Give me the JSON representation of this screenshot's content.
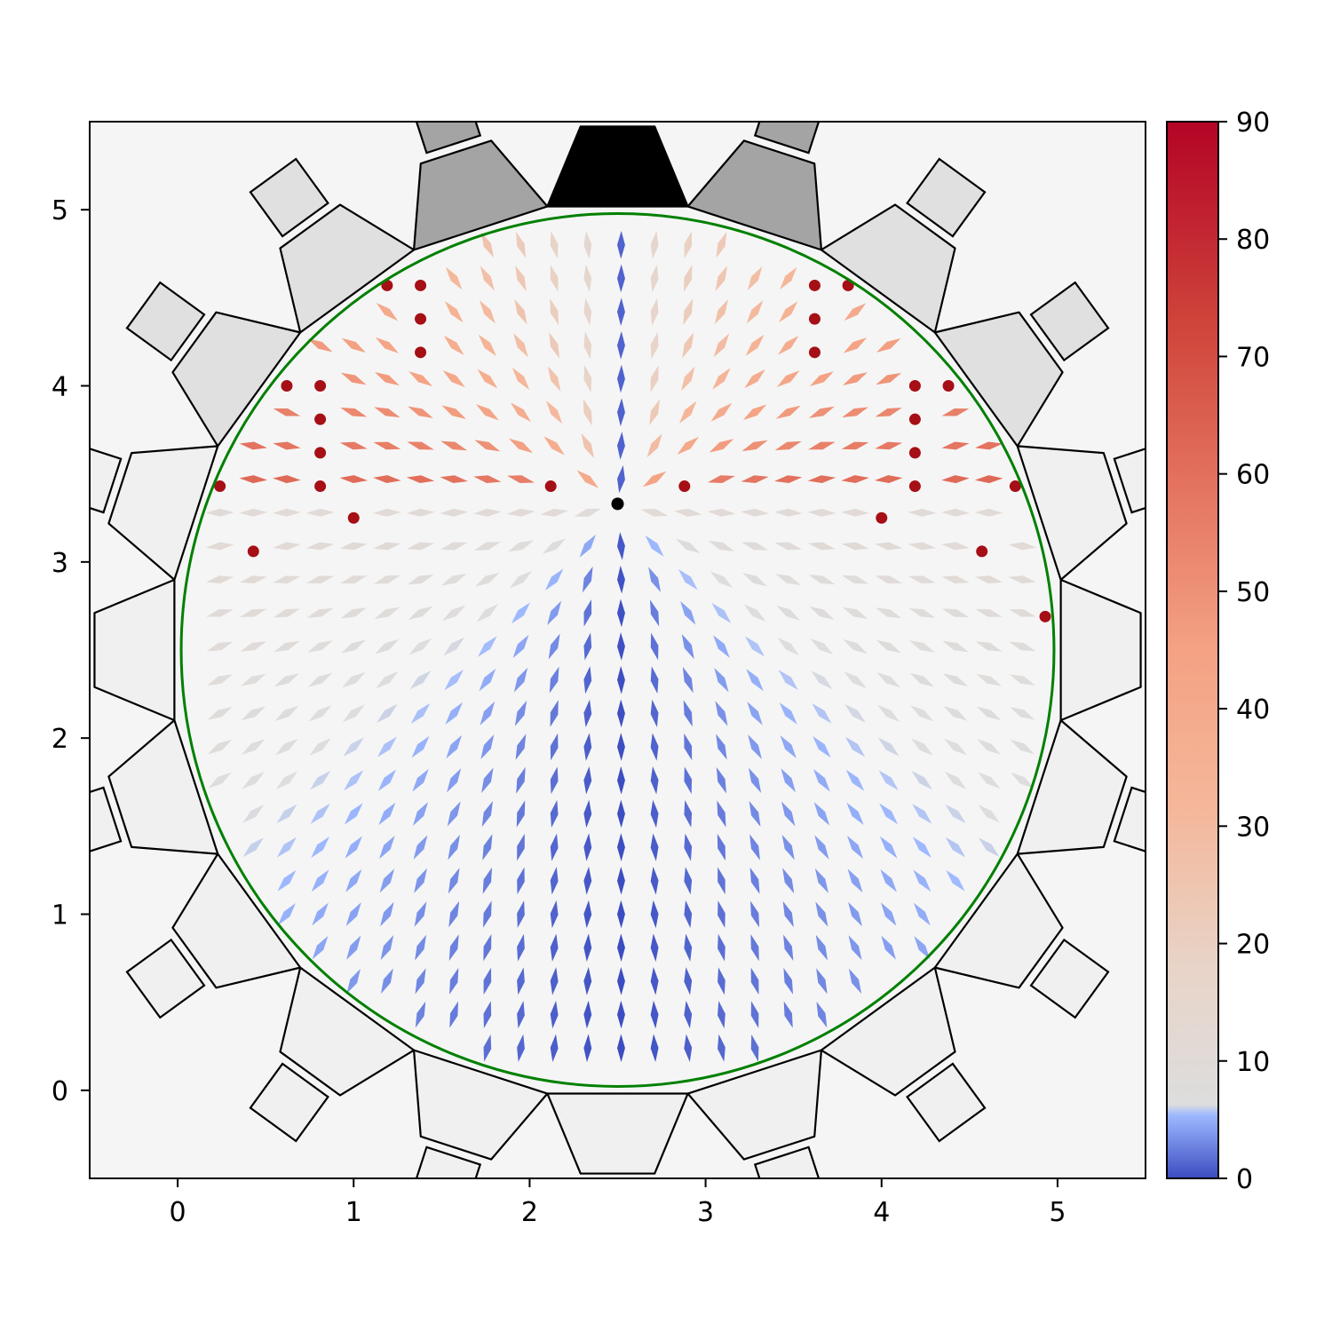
{
  "chart_data": {
    "type": "quiver",
    "title": "",
    "xlabel": "",
    "ylabel": "",
    "xlim": [
      -0.5,
      5.5
    ],
    "ylim": [
      -0.5,
      5.5
    ],
    "x_ticks": [
      "0",
      "1",
      "2",
      "3",
      "4",
      "5"
    ],
    "y_ticks": [
      "0",
      "1",
      "2",
      "3",
      "4",
      "5"
    ],
    "background": "#f5f5f5",
    "circle": {
      "center": [
        2.5,
        2.5
      ],
      "radius": 2.48,
      "color": "#008000"
    },
    "center_marker": {
      "x": 2.5,
      "y": 3.33,
      "color": "#000000"
    },
    "colorbar": {
      "colormap": "coolwarm",
      "range": [
        0,
        90
      ],
      "ticks": [
        "0",
        "10",
        "20",
        "30",
        "40",
        "50",
        "60",
        "70",
        "80",
        "90"
      ]
    },
    "vertical_markers": [
      [
        1.19,
        4.57
      ],
      [
        1.38,
        4.57
      ],
      [
        1.38,
        4.38
      ],
      [
        1.38,
        4.19
      ],
      [
        0.62,
        4.0
      ],
      [
        0.81,
        4.0
      ],
      [
        0.81,
        3.81
      ],
      [
        0.81,
        3.62
      ],
      [
        0.81,
        3.43
      ],
      [
        0.24,
        3.43
      ],
      [
        1.0,
        3.25
      ],
      [
        0.43,
        3.06
      ],
      [
        2.12,
        3.43
      ],
      [
        2.88,
        3.43
      ],
      [
        3.62,
        4.57
      ],
      [
        3.81,
        4.57
      ],
      [
        3.62,
        4.38
      ],
      [
        3.62,
        4.19
      ],
      [
        4.19,
        4.0
      ],
      [
        4.38,
        4.0
      ],
      [
        4.19,
        3.81
      ],
      [
        4.19,
        3.62
      ],
      [
        4.19,
        3.43
      ],
      [
        4.76,
        3.43
      ],
      [
        4.0,
        3.25
      ],
      [
        4.57,
        3.06
      ],
      [
        4.93,
        2.69
      ]
    ],
    "vertical_marker_color": "#a50f15",
    "grid": false
  }
}
